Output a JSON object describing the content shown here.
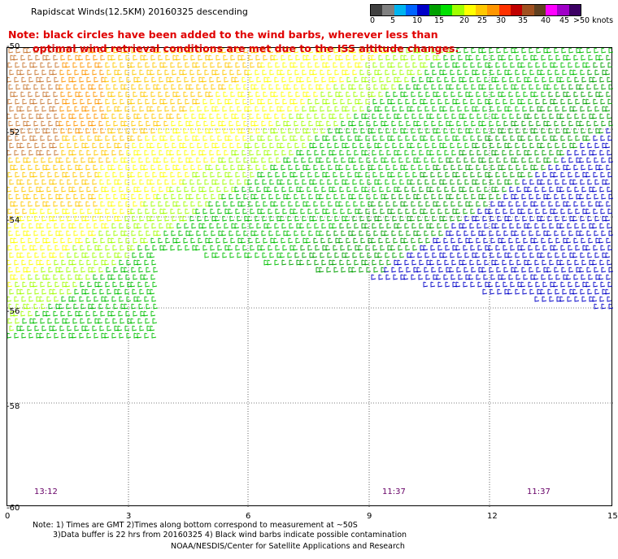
{
  "title": "Rapidscat Winds(12.5KM) 20160325 descending",
  "note_line1": "Note: black circles have been added to the wind barbs, wherever less than",
  "note_line2": "optimal wind retrieval conditions are met due to the ISS altitude changes.",
  "colorbar": {
    "colors": [
      "#404040",
      "#808080",
      "#00b4f0",
      "#0064ff",
      "#0000c8",
      "#00a000",
      "#00e000",
      "#a0ff00",
      "#ffff00",
      "#ffc800",
      "#ff9600",
      "#ff3200",
      "#c00000",
      "#a05020",
      "#604020",
      "#ff00ff",
      "#a000c8",
      "#3c0064"
    ],
    "labels": [
      "0",
      "5",
      "10",
      "15",
      "20",
      "25",
      "30",
      "35",
      "40",
      "45",
      ">50 knots"
    ]
  },
  "y_axis_labels": [
    "-50",
    "-52",
    "-54",
    "-56",
    "-58",
    "-60"
  ],
  "x_axis_labels": [
    "0",
    "3",
    "6",
    "9",
    "12",
    "15"
  ],
  "time_labels": [
    "13:12",
    "11:37",
    "11:37"
  ],
  "footer_line1": "Note: 1) Times are GMT 2)Times along bottom correspond to measurement at ~50S",
  "footer_line2": "3)Data buffer is 22 hrs from 20160325 4) Black wind barbs indicate possible contamination",
  "footer_line3": "NOAA/NESDIS/Center for Satellite Applications and Research"
}
